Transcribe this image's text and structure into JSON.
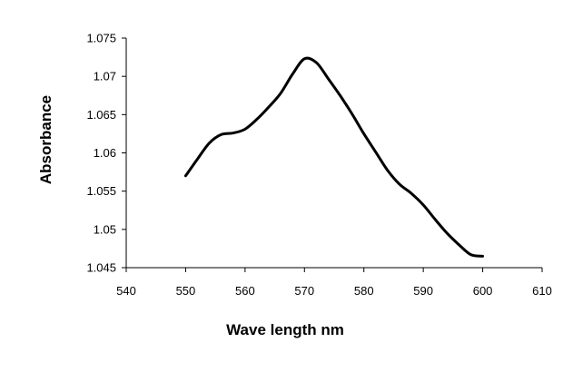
{
  "chart_data": {
    "type": "line",
    "title": "",
    "xlabel": "Wave length nm",
    "ylabel": "Absorbance",
    "xlim": [
      540,
      610
    ],
    "ylim": [
      1.045,
      1.075
    ],
    "x_ticks": [
      540,
      550,
      560,
      570,
      580,
      590,
      600,
      610
    ],
    "y_ticks": [
      1.045,
      1.05,
      1.055,
      1.06,
      1.065,
      1.07,
      1.075
    ],
    "x_tick_labels": [
      "540",
      "550",
      "560",
      "570",
      "580",
      "590",
      "600",
      "610"
    ],
    "y_tick_labels": [
      "1.045",
      "1.05",
      "1.055",
      "1.06",
      "1.065",
      "1.07",
      "1.075"
    ],
    "grid": false,
    "legend": "none",
    "series": [
      {
        "color": "#000000",
        "x": [
          550,
          552,
          554,
          556,
          558,
          560,
          562,
          564,
          566,
          568,
          570,
          572,
          574,
          576,
          578,
          580,
          582,
          584,
          586,
          588,
          590,
          592,
          594,
          596,
          598,
          600
        ],
        "y": [
          1.057,
          1.0592,
          1.0613,
          1.0624,
          1.0626,
          1.0631,
          1.0644,
          1.066,
          1.0678,
          1.0703,
          1.0723,
          1.0718,
          1.0697,
          1.0675,
          1.0651,
          1.0625,
          1.0601,
          1.0577,
          1.0559,
          1.0547,
          1.0532,
          1.0513,
          1.0495,
          1.048,
          1.0467,
          1.0465
        ]
      }
    ]
  }
}
